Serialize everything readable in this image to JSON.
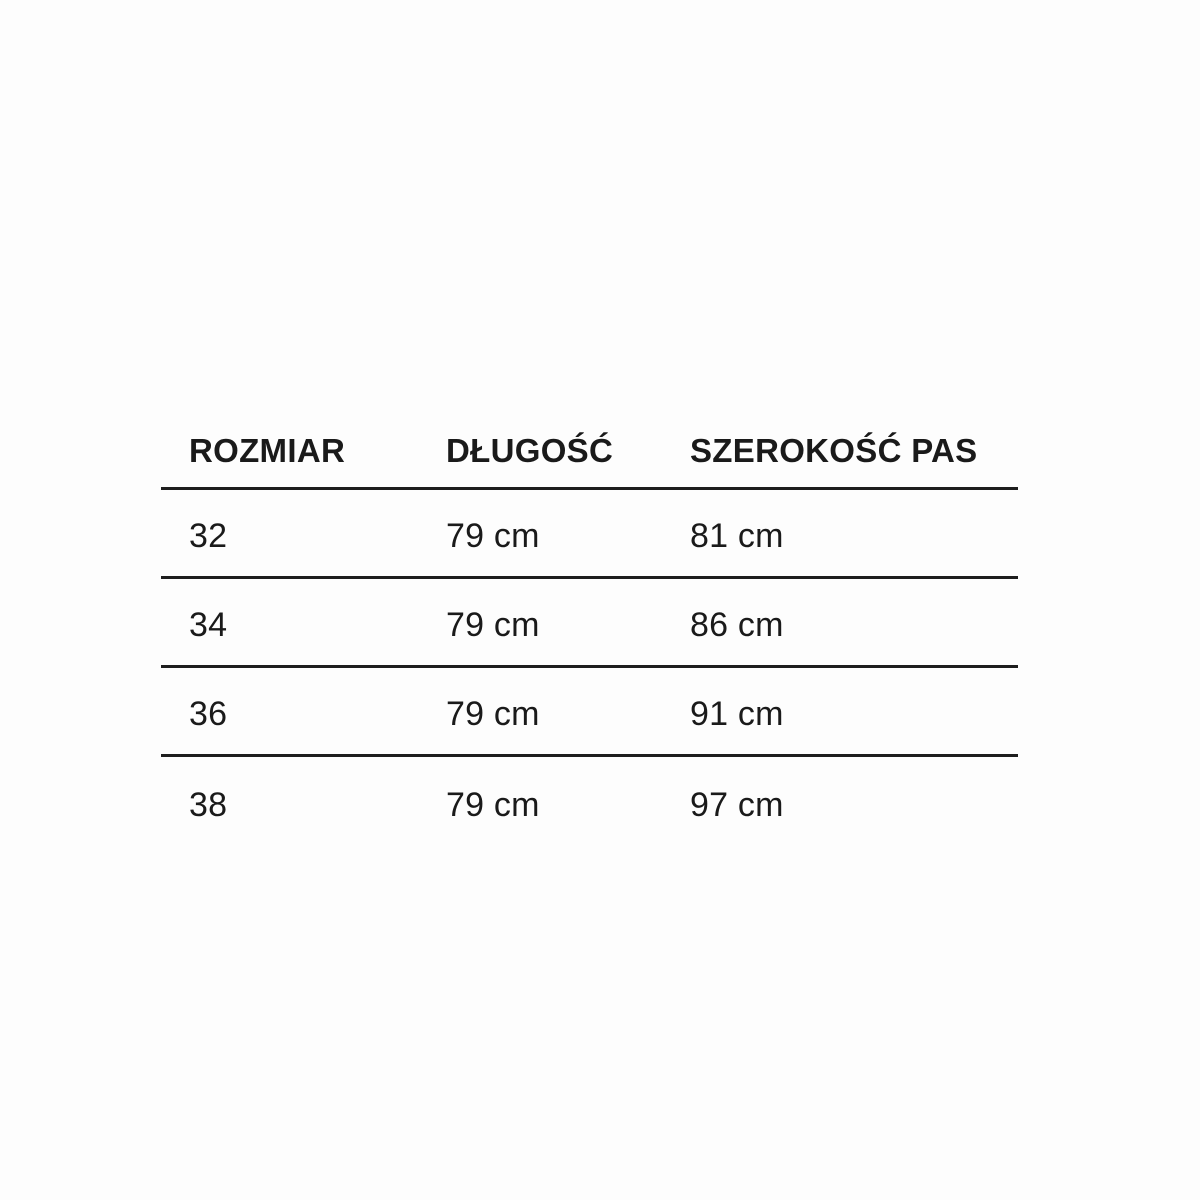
{
  "page": {
    "background_color": "#fdfdfd",
    "text_color": "#1a1a1a",
    "rule_color": "#1e1e1e"
  },
  "size_table": {
    "columns": [
      "ROZMIAR",
      "DŁUGOŚĆ",
      "SZEROKOŚĆ PAS"
    ],
    "rows": [
      [
        "32",
        "79 cm",
        "81 cm"
      ],
      [
        "34",
        "79 cm",
        "86 cm"
      ],
      [
        "36",
        "79 cm",
        "91 cm"
      ],
      [
        "38",
        "79 cm",
        "97 cm"
      ]
    ]
  }
}
